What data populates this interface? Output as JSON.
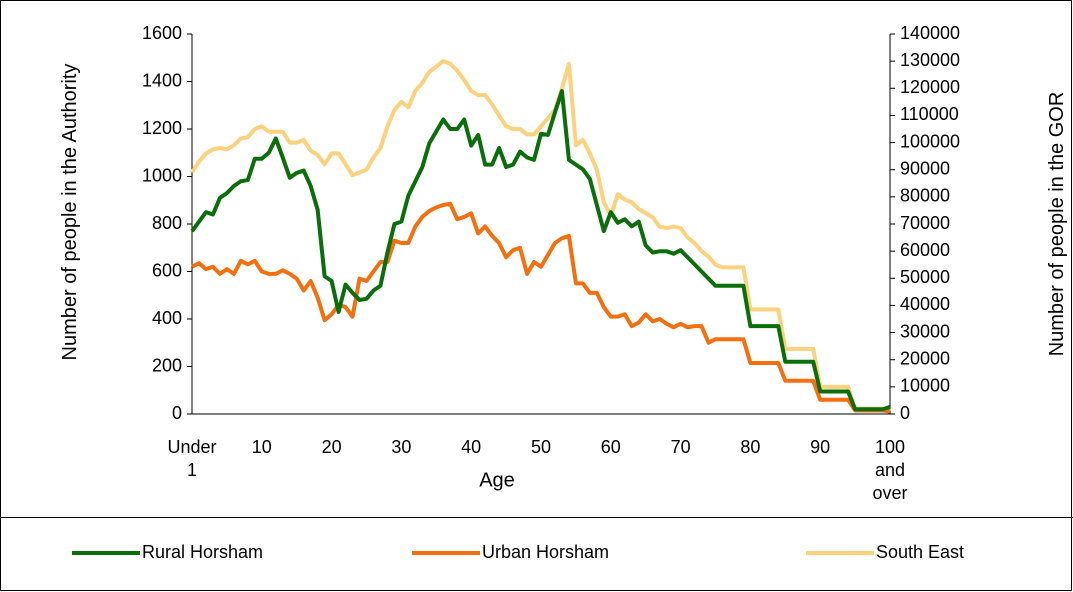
{
  "chart_data": {
    "type": "line",
    "x_label": "Age",
    "y_label": "Number of people in the Authority",
    "y2_label": "Number of people in the GOR",
    "categories": [
      "Under 1",
      null,
      null,
      null,
      null,
      null,
      null,
      null,
      null,
      null,
      "10",
      null,
      null,
      null,
      null,
      null,
      null,
      null,
      null,
      null,
      "20",
      null,
      null,
      null,
      null,
      null,
      null,
      null,
      null,
      null,
      "30",
      null,
      null,
      null,
      null,
      null,
      null,
      null,
      null,
      null,
      "40",
      null,
      null,
      null,
      null,
      null,
      null,
      null,
      null,
      null,
      "50",
      null,
      null,
      null,
      null,
      null,
      null,
      null,
      null,
      null,
      "60",
      null,
      null,
      null,
      null,
      null,
      null,
      null,
      null,
      null,
      "70",
      null,
      null,
      null,
      null,
      null,
      null,
      null,
      null,
      null,
      "80",
      null,
      null,
      null,
      null,
      null,
      null,
      null,
      null,
      null,
      "90",
      null,
      null,
      null,
      null,
      null,
      null,
      null,
      null,
      null,
      "100 and over"
    ],
    "series": [
      {
        "name": "Rural Horsham",
        "color": "#0b6e0b",
        "values": [
          770,
          810,
          850,
          840,
          910,
          930,
          960,
          980,
          985,
          1075,
          1075,
          1100,
          1160,
          1080,
          995,
          1015,
          1025,
          960,
          860,
          580,
          560,
          430,
          545,
          510,
          480,
          485,
          520,
          540,
          680,
          800,
          810,
          920,
          980,
          1040,
          1140,
          1190,
          1240,
          1200,
          1200,
          1240,
          1130,
          1175,
          1050,
          1050,
          1120,
          1040,
          1050,
          1105,
          1080,
          1070,
          1180,
          1175,
          1270,
          1360,
          1070,
          1050,
          1030,
          990,
          880,
          770,
          850,
          805,
          820,
          790,
          810,
          710,
          680,
          685,
          685,
          675,
          690,
          660,
          630,
          600,
          570,
          540,
          540,
          540,
          540,
          540,
          370,
          370,
          370,
          370,
          370,
          220,
          220,
          220,
          220,
          220,
          95,
          95,
          95,
          95,
          95,
          20,
          20,
          20,
          20,
          20,
          30
        ]
      },
      {
        "name": "Urban Horsham",
        "color": "#f36f10",
        "values": [
          620,
          635,
          610,
          620,
          590,
          610,
          590,
          645,
          630,
          645,
          600,
          590,
          590,
          605,
          590,
          570,
          520,
          560,
          490,
          395,
          420,
          460,
          450,
          410,
          570,
          560,
          600,
          640,
          640,
          730,
          720,
          720,
          790,
          830,
          855,
          870,
          880,
          885,
          820,
          830,
          845,
          760,
          790,
          750,
          720,
          660,
          690,
          700,
          590,
          640,
          620,
          670,
          720,
          740,
          750,
          550,
          550,
          510,
          510,
          450,
          410,
          410,
          420,
          370,
          385,
          420,
          390,
          400,
          380,
          365,
          380,
          365,
          370,
          370,
          300,
          315,
          315,
          315,
          315,
          315,
          215,
          215,
          215,
          215,
          215,
          140,
          140,
          140,
          140,
          140,
          60,
          60,
          60,
          60,
          60,
          15,
          15,
          15,
          15,
          15,
          10
        ]
      },
      {
        "name": "South East",
        "color": "#fdd17d",
        "axis": "y2",
        "values": [
          89000,
          93000,
          96000,
          97500,
          98000,
          97500,
          99000,
          101500,
          102000,
          105000,
          106000,
          104000,
          104000,
          104000,
          100000,
          100000,
          101000,
          97000,
          95500,
          92000,
          96000,
          96000,
          92000,
          88000,
          89000,
          90000,
          94500,
          98000,
          106000,
          112000,
          115000,
          113000,
          119000,
          122000,
          126000,
          128000,
          130000,
          129000,
          126500,
          123000,
          119000,
          117500,
          117500,
          114000,
          110000,
          106000,
          105000,
          105000,
          103000,
          103000,
          106000,
          109000,
          112000,
          120000,
          129000,
          99000,
          101000,
          96000,
          90000,
          78000,
          73000,
          81000,
          79000,
          78000,
          75500,
          74000,
          72500,
          69000,
          68500,
          69000,
          68500,
          65000,
          63000,
          60000,
          58000,
          55000,
          54000,
          54000,
          54000,
          54000,
          38500,
          38500,
          38500,
          38500,
          38500,
          24000,
          24000,
          24000,
          24000,
          24000,
          10000,
          10000,
          10000,
          10000,
          10000,
          2000,
          2000,
          2000,
          2000,
          2000,
          1000
        ]
      }
    ],
    "ylim": [
      0,
      1600
    ],
    "yticks": [
      0,
      200,
      400,
      600,
      800,
      1000,
      1200,
      1400,
      1600
    ],
    "y2lim": [
      0,
      140000
    ],
    "y2ticks": [
      0,
      10000,
      20000,
      30000,
      40000,
      50000,
      60000,
      70000,
      80000,
      90000,
      100000,
      110000,
      120000,
      130000,
      140000
    ],
    "legend": "bottom"
  }
}
